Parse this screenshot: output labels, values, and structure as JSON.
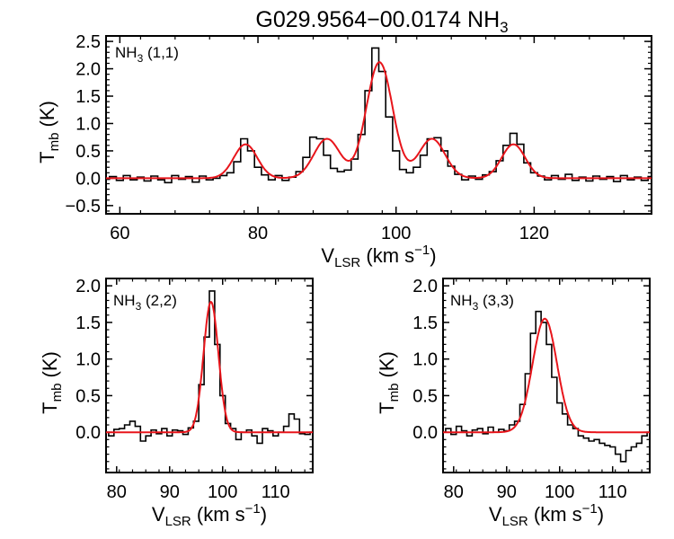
{
  "figure": {
    "title_main": "G029.9564−00.0174 NH",
    "title_sub": "3"
  },
  "colors": {
    "data": "#000000",
    "fit": "#e8151b",
    "axis": "#000000"
  },
  "chart_data": [
    {
      "type": "line",
      "panel": "top",
      "label_main": "NH",
      "label_sub": "3",
      "label_tail": " (1,1)",
      "xlim": [
        58,
        137
      ],
      "ylim": [
        -0.65,
        2.6
      ],
      "xticks": [
        60,
        80,
        100,
        120
      ],
      "yticks": [
        -0.5,
        0.0,
        0.5,
        1.0,
        1.5,
        2.0,
        2.5
      ],
      "xlabel": {
        "main": "V",
        "sub": "LSR",
        "unit": " (km s",
        "exp": "−1",
        "close": ")"
      },
      "ylabel": {
        "main": "T",
        "sub": "mb",
        "unit": " (K)"
      },
      "series": [
        {
          "role": "spectrum",
          "x": [
            58.0,
            59.0,
            60.0,
            61.0,
            62.0,
            63.0,
            64.0,
            65.0,
            66.0,
            67.0,
            68.0,
            69.0,
            70.0,
            71.0,
            72.0,
            73.0,
            74.0,
            75.0,
            76.0,
            77.0,
            78.0,
            79.0,
            80.0,
            81.0,
            82.0,
            83.0,
            84.0,
            85.0,
            86.0,
            87.0,
            88.0,
            89.0,
            90.0,
            91.0,
            92.0,
            93.0,
            94.0,
            95.0,
            96.0,
            97.0,
            98.0,
            99.0,
            100.0,
            101.0,
            102.0,
            103.0,
            104.0,
            105.0,
            106.0,
            107.0,
            108.0,
            109.0,
            110.0,
            111.0,
            112.0,
            113.0,
            114.0,
            115.0,
            116.0,
            117.0,
            118.0,
            119.0,
            120.0,
            121.0,
            122.0,
            123.0,
            124.0,
            125.0,
            126.0,
            127.0,
            128.0,
            129.0,
            130.0,
            131.0,
            132.0,
            133.0,
            134.0,
            135.0,
            136.0,
            137.0
          ],
          "y": [
            -0.02,
            0.03,
            -0.04,
            0.05,
            -0.03,
            0.02,
            -0.05,
            0.04,
            -0.03,
            -0.08,
            0.05,
            -0.02,
            0.03,
            -0.07,
            0.04,
            -0.03,
            0.0,
            0.05,
            0.1,
            0.3,
            0.72,
            0.5,
            0.2,
            0.06,
            -0.03,
            0.05,
            -0.04,
            0.02,
            0.12,
            0.38,
            0.75,
            0.72,
            0.42,
            0.18,
            0.12,
            0.15,
            0.35,
            0.8,
            1.6,
            2.38,
            1.95,
            1.12,
            0.5,
            0.16,
            0.1,
            0.2,
            0.42,
            0.72,
            0.74,
            0.5,
            0.22,
            0.07,
            -0.03,
            0.04,
            -0.02,
            0.06,
            0.12,
            0.32,
            0.6,
            0.82,
            0.62,
            0.28,
            0.1,
            0.04,
            -0.03,
            0.05,
            -0.02,
            0.07,
            -0.04,
            0.02,
            -0.05,
            0.04,
            -0.02,
            0.03,
            -0.06,
            0.05,
            -0.03,
            0.02,
            -0.04,
            0.03
          ]
        },
        {
          "role": "fit",
          "components": [
            {
              "center": 78.2,
              "amplitude": 0.62,
              "sigma": 1.7
            },
            {
              "center": 90.0,
              "amplitude": 0.72,
              "sigma": 1.9
            },
            {
              "center": 97.6,
              "amplitude": 2.12,
              "sigma": 1.9
            },
            {
              "center": 105.2,
              "amplitude": 0.72,
              "sigma": 1.9
            },
            {
              "center": 117.0,
              "amplitude": 0.62,
              "sigma": 1.7
            }
          ]
        }
      ]
    },
    {
      "type": "line",
      "panel": "bottom-left",
      "label_main": "NH",
      "label_sub": "3",
      "label_tail": " (2,2)",
      "xlim": [
        78,
        117
      ],
      "ylim": [
        -0.55,
        2.1
      ],
      "xticks": [
        80,
        90,
        100,
        110
      ],
      "yticks": [
        0.0,
        0.5,
        1.0,
        1.5,
        2.0
      ],
      "xlabel": {
        "main": "V",
        "sub": "LSR",
        "unit": " (km s",
        "exp": "−1",
        "close": ")"
      },
      "ylabel": {
        "main": "T",
        "sub": "mb",
        "unit": " (K)"
      },
      "series": [
        {
          "role": "spectrum",
          "x": [
            78.0,
            79.0,
            80.0,
            81.0,
            82.0,
            83.0,
            84.0,
            85.0,
            86.0,
            87.0,
            88.0,
            89.0,
            90.0,
            91.0,
            92.0,
            93.0,
            94.0,
            95.0,
            96.0,
            97.0,
            98.0,
            99.0,
            100.0,
            101.0,
            102.0,
            103.0,
            104.0,
            105.0,
            106.0,
            107.0,
            108.0,
            109.0,
            110.0,
            111.0,
            112.0,
            113.0,
            114.0,
            115.0,
            116.0,
            117.0
          ],
          "y": [
            0.0,
            -0.05,
            0.04,
            0.05,
            0.1,
            0.15,
            0.08,
            -0.12,
            -0.05,
            0.03,
            -0.02,
            0.05,
            -0.05,
            0.03,
            0.02,
            -0.03,
            0.06,
            0.15,
            0.65,
            1.3,
            1.93,
            1.2,
            0.5,
            0.12,
            0.05,
            -0.1,
            0.0,
            0.03,
            -0.05,
            -0.15,
            0.05,
            0.02,
            -0.05,
            0.0,
            0.08,
            0.25,
            0.18,
            -0.02,
            -0.03,
            0.0
          ]
        },
        {
          "role": "fit",
          "components": [
            {
              "center": 97.8,
              "amplitude": 1.78,
              "sigma": 1.4
            }
          ]
        }
      ]
    },
    {
      "type": "line",
      "panel": "bottom-right",
      "label_main": "NH",
      "label_sub": "3",
      "label_tail": " (3,3)",
      "xlim": [
        78,
        117
      ],
      "ylim": [
        -0.55,
        2.1
      ],
      "xticks": [
        80,
        90,
        100,
        110
      ],
      "yticks": [
        0.0,
        0.5,
        1.0,
        1.5,
        2.0
      ],
      "xlabel": {
        "main": "V",
        "sub": "LSR",
        "unit": " (km s",
        "exp": "−1",
        "close": ")"
      },
      "ylabel": {
        "main": "T",
        "sub": "mb",
        "unit": " (K)"
      },
      "series": [
        {
          "role": "spectrum",
          "x": [
            78.0,
            79.0,
            80.0,
            81.0,
            82.0,
            83.0,
            84.0,
            85.0,
            86.0,
            87.0,
            88.0,
            89.0,
            90.0,
            91.0,
            92.0,
            93.0,
            94.0,
            95.0,
            96.0,
            97.0,
            98.0,
            99.0,
            100.0,
            101.0,
            102.0,
            103.0,
            104.0,
            105.0,
            106.0,
            107.0,
            108.0,
            109.0,
            110.0,
            111.0,
            112.0,
            113.0,
            114.0,
            115.0,
            116.0,
            117.0
          ],
          "y": [
            0.0,
            0.05,
            -0.03,
            0.08,
            0.02,
            -0.05,
            0.03,
            0.05,
            -0.02,
            0.07,
            0.0,
            0.04,
            0.02,
            0.1,
            0.15,
            0.38,
            0.8,
            1.35,
            1.65,
            1.5,
            1.2,
            0.75,
            0.4,
            0.25,
            0.1,
            0.05,
            -0.05,
            -0.08,
            -0.12,
            -0.1,
            -0.15,
            -0.18,
            -0.2,
            -0.3,
            -0.4,
            -0.25,
            -0.2,
            -0.15,
            -0.05,
            0.0
          ]
        },
        {
          "role": "fit",
          "components": [
            {
              "center": 97.2,
              "amplitude": 1.55,
              "sigma": 2.3
            }
          ]
        }
      ]
    }
  ]
}
